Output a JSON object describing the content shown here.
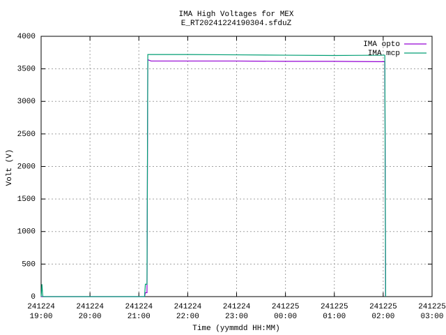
{
  "chart_data": {
    "type": "line",
    "title": "IMA High Voltages for MEX",
    "subtitle": "E_RT20241224190304.sfduZ",
    "x_label": "Time (yymmdd HH:MM)",
    "y_label": "Volt (V)",
    "x": [
      "241224 19:00",
      "241224 19:01",
      "241224 19:02",
      "241224 21:07",
      "241224 21:08",
      "241224 21:10",
      "241224 21:11",
      "241224 21:15",
      "241224 22:00",
      "241224 23:00",
      "241225 00:00",
      "241225 01:00",
      "241225 02:00",
      "241225 02:02",
      "241225 02:03"
    ],
    "series": [
      {
        "name": "IMA opto",
        "color": "#9400d3",
        "values": [
          0,
          0,
          0,
          0,
          60,
          60,
          3640,
          3620,
          3620,
          3620,
          3615,
          3615,
          3610,
          3610,
          0
        ]
      },
      {
        "name": "IMA mcp",
        "color": "#009e73",
        "values": [
          0,
          190,
          0,
          0,
          190,
          190,
          3720,
          3720,
          3720,
          3715,
          3710,
          3705,
          3710,
          3710,
          0
        ]
      }
    ],
    "xlim": [
      "241224 19:00",
      "241225 03:00"
    ],
    "xticks": [
      "241224 19:00",
      "241224 20:00",
      "241224 21:00",
      "241224 22:00",
      "241224 23:00",
      "241225 00:00",
      "241225 01:00",
      "241225 02:00",
      "241225 03:00"
    ],
    "ylim": [
      0,
      4000
    ],
    "yticks": [
      0,
      500,
      1000,
      1500,
      2000,
      2500,
      3000,
      3500,
      4000
    ],
    "grid": true,
    "legend": "top-right"
  }
}
